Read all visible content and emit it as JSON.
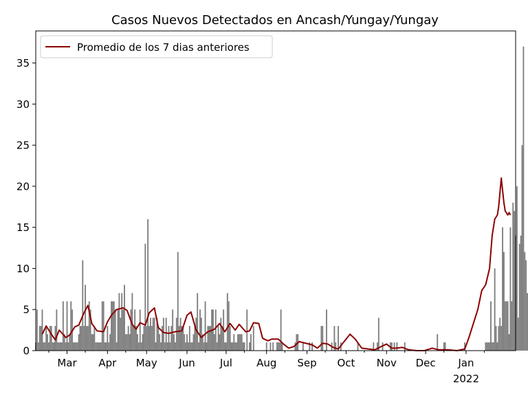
{
  "chart_data": {
    "type": "bar",
    "title": "Casos Nuevos Detectados en Ancash/Yungay/Yungay",
    "xlabel": "",
    "ylabel": "",
    "ylim": [
      0,
      38.9
    ],
    "y_ticks": [
      0,
      5,
      10,
      15,
      20,
      25,
      30,
      35
    ],
    "x_range": [
      "2021-02-05",
      "2022-02-08"
    ],
    "x_ticks": [
      {
        "date": "2021-03-01",
        "label": "Mar",
        "sublabel": ""
      },
      {
        "date": "2021-04-01",
        "label": "Apr",
        "sublabel": ""
      },
      {
        "date": "2021-05-01",
        "label": "May",
        "sublabel": ""
      },
      {
        "date": "2021-06-01",
        "label": "Jun",
        "sublabel": ""
      },
      {
        "date": "2021-07-01",
        "label": "Jul",
        "sublabel": ""
      },
      {
        "date": "2021-08-01",
        "label": "Aug",
        "sublabel": ""
      },
      {
        "date": "2021-09-01",
        "label": "Sep",
        "sublabel": ""
      },
      {
        "date": "2021-10-01",
        "label": "Oct",
        "sublabel": ""
      },
      {
        "date": "2021-11-01",
        "label": "Nov",
        "sublabel": ""
      },
      {
        "date": "2021-12-01",
        "label": "Dec",
        "sublabel": ""
      },
      {
        "date": "2022-01-01",
        "label": "Jan",
        "sublabel": "2022"
      }
    ],
    "grid": false,
    "legend": {
      "position": "top-left",
      "entries": [
        "Promedio de los 7 dias anteriores"
      ]
    },
    "colors": {
      "bars": "#808080",
      "line": "#8b0000"
    },
    "series": [
      {
        "name": "",
        "type": "bar",
        "start_date": "2021-02-05",
        "values": [
          1,
          5,
          1,
          3,
          3,
          5,
          1,
          1,
          3,
          2,
          1,
          3,
          3,
          1,
          1,
          3,
          5,
          1,
          1,
          1,
          1,
          6,
          2,
          1,
          6,
          1,
          2,
          6,
          5,
          1,
          1,
          1,
          1,
          2,
          3,
          3,
          11,
          3,
          8,
          3,
          3,
          6,
          5,
          2,
          2,
          3,
          1,
          1,
          1,
          1,
          1,
          6,
          6,
          1,
          1,
          3,
          1,
          2,
          6,
          6,
          6,
          5,
          1,
          5,
          7,
          4,
          7,
          5,
          8,
          2,
          2,
          3,
          2,
          5,
          7,
          3,
          5,
          3,
          2,
          1,
          5,
          1,
          2,
          3,
          13,
          3,
          16,
          3,
          4,
          3,
          4,
          4,
          1,
          4,
          3,
          2,
          1,
          3,
          4,
          1,
          4,
          1,
          3,
          1,
          3,
          5,
          2,
          1,
          4,
          12,
          3,
          4,
          3,
          3,
          2,
          1,
          2,
          1,
          3,
          1,
          1,
          2,
          3,
          4,
          7,
          1,
          5,
          4,
          2,
          1,
          6,
          1,
          3,
          3,
          3,
          5,
          5,
          2,
          5,
          1,
          3,
          2,
          4,
          3,
          5,
          1,
          1,
          7,
          6,
          3,
          1,
          1,
          2,
          1,
          1,
          2,
          2,
          2,
          2,
          1,
          1,
          0,
          5,
          0,
          1,
          2,
          0,
          3,
          0,
          0,
          0,
          0,
          0,
          0,
          0,
          0,
          0,
          1,
          0,
          0,
          1,
          0,
          1,
          0,
          0,
          1,
          1,
          1,
          5,
          1,
          0,
          0,
          0,
          0,
          0,
          0,
          0,
          0,
          0,
          1,
          2,
          2,
          0,
          0,
          0,
          1,
          0,
          0,
          0,
          0,
          1,
          0,
          1,
          0,
          0,
          0,
          0,
          0,
          0,
          3,
          3,
          0,
          0,
          5,
          0,
          0,
          0,
          1,
          0,
          3,
          1,
          0,
          3,
          0,
          1,
          0,
          0,
          0,
          0,
          0,
          0,
          0,
          0,
          0,
          0,
          0,
          0,
          1,
          0,
          0,
          0,
          0,
          0,
          0,
          0,
          0,
          0,
          0,
          0,
          1,
          0,
          0,
          1,
          4,
          0,
          0,
          1,
          0,
          0,
          0,
          0,
          0,
          1,
          1,
          0,
          1,
          0,
          1,
          0,
          0,
          0,
          0,
          0,
          1,
          0,
          0,
          0,
          0,
          0,
          0,
          0,
          0,
          0,
          0,
          0,
          0,
          0,
          0,
          0,
          0,
          0,
          0,
          0,
          0,
          0,
          0,
          0,
          0,
          2,
          0,
          0,
          0,
          0,
          1,
          1,
          0,
          0,
          0,
          0,
          0,
          0,
          0,
          0,
          0,
          0,
          0,
          0,
          0,
          0,
          1,
          0,
          0,
          0,
          0,
          0,
          0,
          0,
          0,
          0,
          0,
          0,
          0,
          0,
          0,
          0,
          1,
          1,
          1,
          1,
          6,
          1,
          1,
          10,
          3,
          1,
          3,
          4,
          3,
          15,
          12,
          6,
          6,
          6,
          2,
          15,
          6,
          18,
          17,
          14,
          20,
          4,
          13,
          14,
          25,
          37,
          12,
          11,
          7,
          9
        ]
      },
      {
        "name": "Promedio de los 7 dias anteriores",
        "type": "line",
        "points": [
          [
            "2021-02-10",
            2.0
          ],
          [
            "2021-02-13",
            3.0
          ],
          [
            "2021-02-17",
            2.0
          ],
          [
            "2021-02-20",
            1.3
          ],
          [
            "2021-02-23",
            2.5
          ],
          [
            "2021-02-28",
            1.6
          ],
          [
            "2021-03-03",
            1.9
          ],
          [
            "2021-03-07",
            2.9
          ],
          [
            "2021-03-10",
            3.1
          ],
          [
            "2021-03-14",
            4.6
          ],
          [
            "2021-03-17",
            5.5
          ],
          [
            "2021-03-20",
            3.3
          ],
          [
            "2021-03-24",
            2.4
          ],
          [
            "2021-03-29",
            2.3
          ],
          [
            "2021-04-01",
            3.5
          ],
          [
            "2021-04-04",
            4.3
          ],
          [
            "2021-04-08",
            5.0
          ],
          [
            "2021-04-13",
            5.2
          ],
          [
            "2021-04-16",
            4.9
          ],
          [
            "2021-04-20",
            3.2
          ],
          [
            "2021-04-23",
            2.6
          ],
          [
            "2021-04-26",
            3.4
          ],
          [
            "2021-04-30",
            3.1
          ],
          [
            "2021-05-03",
            4.6
          ],
          [
            "2021-05-07",
            5.2
          ],
          [
            "2021-05-10",
            2.8
          ],
          [
            "2021-05-14",
            2.2
          ],
          [
            "2021-05-18",
            2.1
          ],
          [
            "2021-05-23",
            2.3
          ],
          [
            "2021-05-28",
            2.4
          ],
          [
            "2021-06-01",
            4.3
          ],
          [
            "2021-06-04",
            4.7
          ],
          [
            "2021-06-08",
            2.5
          ],
          [
            "2021-06-12",
            1.6
          ],
          [
            "2021-06-17",
            2.3
          ],
          [
            "2021-06-22",
            2.6
          ],
          [
            "2021-06-26",
            3.3
          ],
          [
            "2021-06-30",
            2.3
          ],
          [
            "2021-07-04",
            3.3
          ],
          [
            "2021-07-08",
            2.5
          ],
          [
            "2021-07-11",
            3.2
          ],
          [
            "2021-07-16",
            2.3
          ],
          [
            "2021-07-19",
            2.4
          ],
          [
            "2021-07-22",
            3.4
          ],
          [
            "2021-07-26",
            3.3
          ],
          [
            "2021-07-29",
            1.5
          ],
          [
            "2021-08-02",
            1.2
          ],
          [
            "2021-08-05",
            1.4
          ],
          [
            "2021-08-10",
            1.4
          ],
          [
            "2021-08-14",
            0.8
          ],
          [
            "2021-08-18",
            0.3
          ],
          [
            "2021-08-22",
            0.5
          ],
          [
            "2021-08-26",
            1.1
          ],
          [
            "2021-08-31",
            0.9
          ],
          [
            "2021-09-05",
            0.7
          ],
          [
            "2021-09-09",
            0.3
          ],
          [
            "2021-09-13",
            0.9
          ],
          [
            "2021-09-17",
            0.8
          ],
          [
            "2021-09-21",
            0.4
          ],
          [
            "2021-09-25",
            0.2
          ],
          [
            "2021-09-29",
            1.0
          ],
          [
            "2021-10-04",
            2.0
          ],
          [
            "2021-10-08",
            1.4
          ],
          [
            "2021-10-13",
            0.3
          ],
          [
            "2021-10-18",
            0.2
          ],
          [
            "2021-10-23",
            0.1
          ],
          [
            "2021-10-28",
            0.5
          ],
          [
            "2021-11-01",
            0.8
          ],
          [
            "2021-11-05",
            0.3
          ],
          [
            "2021-11-09",
            0.3
          ],
          [
            "2021-11-13",
            0.4
          ],
          [
            "2021-11-18",
            0.1
          ],
          [
            "2021-11-24",
            0.0
          ],
          [
            "2021-11-30",
            0.0
          ],
          [
            "2021-12-06",
            0.3
          ],
          [
            "2021-12-11",
            0.1
          ],
          [
            "2021-12-18",
            0.1
          ],
          [
            "2021-12-25",
            0.0
          ],
          [
            "2021-12-31",
            0.2
          ],
          [
            "2022-01-03",
            1.5
          ],
          [
            "2022-01-07",
            3.5
          ],
          [
            "2022-01-10",
            5.0
          ],
          [
            "2022-01-13",
            7.3
          ],
          [
            "2022-01-16",
            8.0
          ],
          [
            "2022-01-19",
            10.0
          ],
          [
            "2022-01-21",
            14.0
          ],
          [
            "2022-01-23",
            16.0
          ],
          [
            "2022-01-25",
            16.5
          ],
          [
            "2022-01-26",
            17.5
          ],
          [
            "2022-01-28",
            21.0
          ],
          [
            "2022-01-30",
            18.0
          ],
          [
            "2022-01-31",
            17.0
          ],
          [
            "2022-02-02",
            16.5
          ],
          [
            "2022-02-03",
            16.8
          ],
          [
            "2022-02-04",
            16.5
          ]
        ]
      }
    ]
  }
}
